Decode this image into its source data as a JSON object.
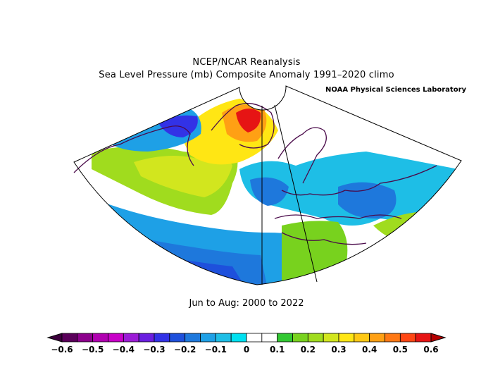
{
  "title_line1": "NCEP/NCAR Reanalysis",
  "title_line2": "Sea Level Pressure (mb) Composite Anomaly 1991–2020 climo",
  "credit": "NOAA Physical Sciences Laboratory",
  "period": "Jun to Aug: 2000 to 2022",
  "colorbar": {
    "tick_labels": [
      "−0.6",
      "−0.5",
      "−0.4",
      "−0.3",
      "−0.2",
      "−0.1",
      "0",
      "0.1",
      "0.2",
      "0.3",
      "0.4",
      "0.5",
      "0.6"
    ],
    "colors": [
      "#5a005a",
      "#8c008c",
      "#b000b0",
      "#c800c8",
      "#9b1bd6",
      "#6a1ee0",
      "#3232e6",
      "#1e50dc",
      "#1e78dc",
      "#1ea0e6",
      "#1ebee6",
      "#00e0f0",
      "#ffffff",
      "#ffffff",
      "#32c832",
      "#78d21e",
      "#a0dc1e",
      "#d2e61e",
      "#ffe614",
      "#ffc814",
      "#ffa014",
      "#ff7814",
      "#ff4614",
      "#e61414"
    ]
  }
}
